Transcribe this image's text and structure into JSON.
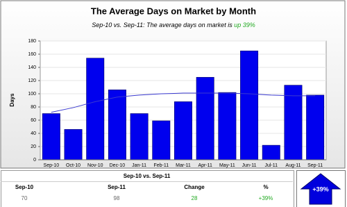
{
  "chart_data": {
    "type": "bar",
    "title": "The Average Days on Market by Month",
    "subtitle": "Sep-10 vs. Sep-11: The average days on market is ",
    "subtitle_highlight": "up 39%",
    "y_label": "Days",
    "categories": [
      "Sep-10",
      "Oct-10",
      "Nov-10",
      "Dec-10",
      "Jan-11",
      "Feb-11",
      "Mar-11",
      "Apr-11",
      "May-11",
      "Jun-11",
      "Jul-11",
      "Aug-11",
      "Sep-11"
    ],
    "series": [
      {
        "type": "bar",
        "color": "#0000ee",
        "values": [
          70,
          46,
          154,
          106,
          70,
          59,
          88,
          125,
          102,
          165,
          22,
          113,
          98
        ]
      },
      {
        "type": "line",
        "color": "#3a3ad0",
        "values": [
          72,
          79,
          88,
          95,
          98,
          100,
          101,
          101,
          101,
          100,
          98,
          97,
          97
        ]
      }
    ],
    "ylim": [
      0,
      180
    ],
    "yticks": [
      0,
      20,
      40,
      60,
      80,
      100,
      120,
      140,
      160,
      180
    ],
    "grid": true
  },
  "table": {
    "title": "Sep-10 vs. Sep-11",
    "headers": [
      "Sep-10",
      "Sep-11",
      "Change",
      "%"
    ],
    "rows": [
      [
        "70",
        "98",
        "28",
        "+39%"
      ]
    ]
  },
  "badge": {
    "label": "+39%"
  }
}
